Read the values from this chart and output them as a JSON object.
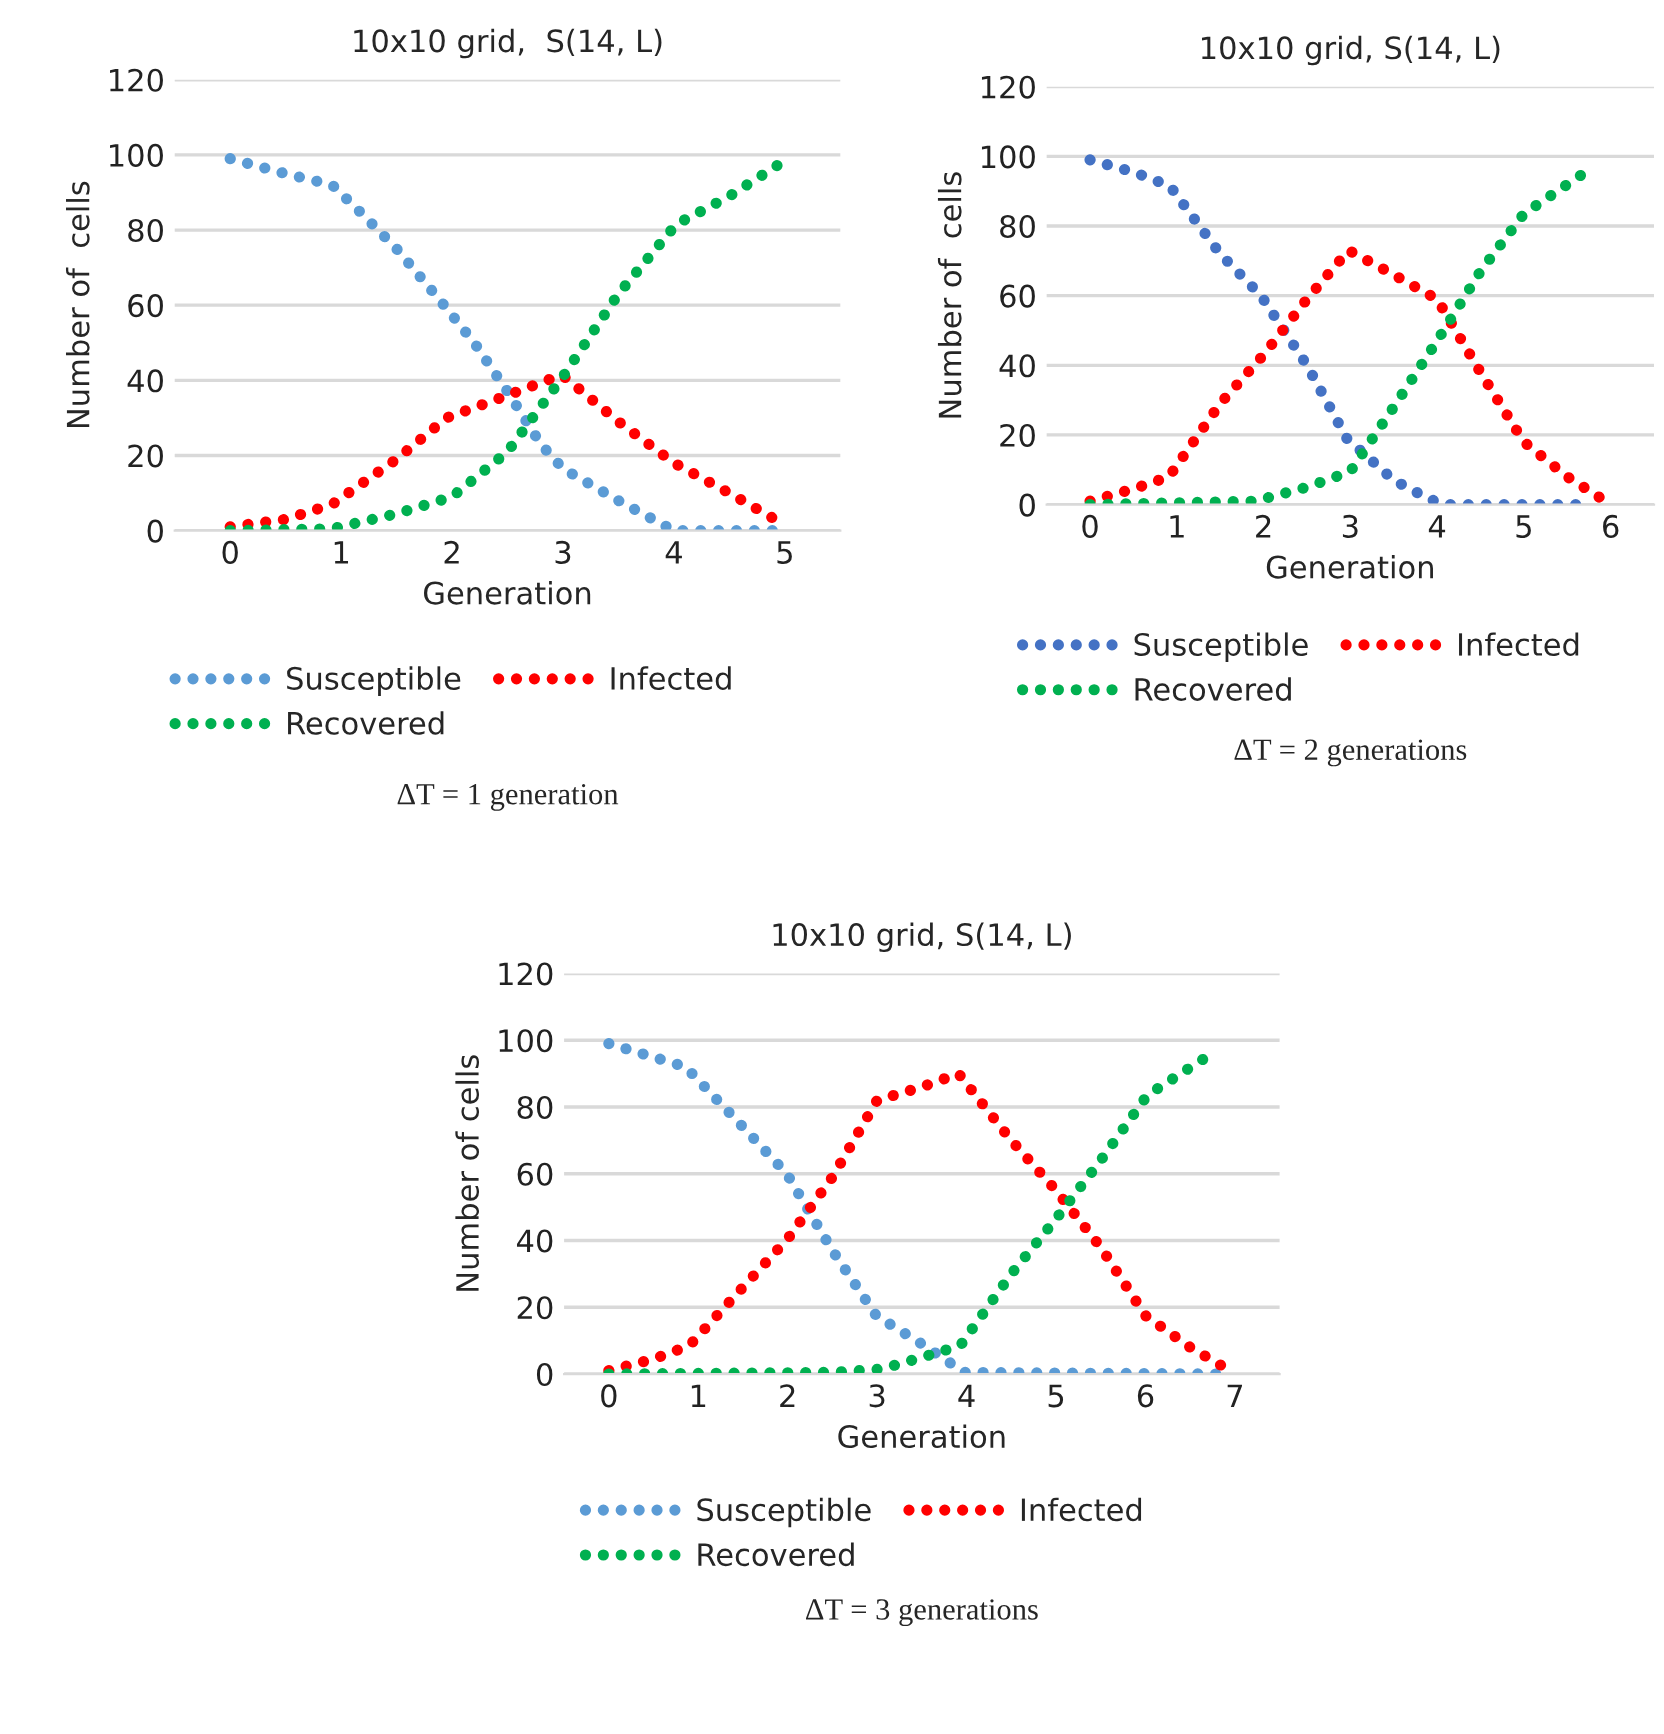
{
  "chart_data": [
    {
      "type": "line",
      "title": "10x10 grid,  S(14, L)",
      "xlabel": "Generation",
      "ylabel": "Number of  cells",
      "xlim": [
        -0.5,
        5.5
      ],
      "xticks": [
        0,
        1,
        2,
        3,
        4,
        5
      ],
      "ylim": [
        0,
        120
      ],
      "yticks": [
        0,
        20,
        40,
        60,
        80,
        100,
        120
      ],
      "grid": "y",
      "legend": "bottom",
      "line_style": "dotted",
      "marker": "none",
      "annotations": [
        "ΔT = 1 generation"
      ],
      "series": [
        {
          "name": "Susceptible",
          "color": "#5b9bd5",
          "x": [
            0,
            0.5,
            0.92,
            1.2,
            1.5,
            1.9,
            2.2,
            2.5,
            2.8,
            3.0,
            3.5,
            4.0,
            5
          ],
          "values": [
            99,
            95,
            92,
            84,
            75,
            61,
            50,
            37,
            23,
            16.5,
            8,
            0,
            0
          ]
        },
        {
          "name": "Infected",
          "color": "#ff0000",
          "x": [
            0,
            0.5,
            0.92,
            1.5,
            1.95,
            2.5,
            2.99,
            3.5,
            4.0,
            4.5,
            5
          ],
          "values": [
            1,
            3,
            7,
            19,
            30,
            36,
            41.5,
            29,
            18,
            10,
            1.5
          ]
        },
        {
          "name": "Recovered",
          "color": "#00b050",
          "x": [
            0,
            0.92,
            1.5,
            2.0,
            2.5,
            3.0,
            3.5,
            4.02,
            4.5,
            5
          ],
          "values": [
            0,
            0.5,
            4.5,
            9,
            21,
            41,
            63,
            81.5,
            89,
            98.5
          ]
        }
      ]
    },
    {
      "type": "line",
      "title": "10x10 grid, S(14, L)",
      "xlabel": "Generation",
      "ylabel": "Number of  cells",
      "xlim": [
        -0.5,
        6.5
      ],
      "xticks": [
        0,
        1,
        2,
        3,
        4,
        5,
        6
      ],
      "ylim": [
        0,
        120
      ],
      "yticks": [
        0,
        20,
        40,
        60,
        80,
        100,
        120
      ],
      "grid": "y",
      "legend": "bottom",
      "line_style": "dotted",
      "marker": "none",
      "annotations": [
        "ΔT = 2 generations"
      ],
      "series": [
        {
          "name": "Susceptible",
          "color": "#4472c4",
          "x": [
            0,
            0.5,
            0.92,
            1.5,
            1.97,
            2.5,
            2.96,
            3.5,
            3.92,
            4.1,
            5.8
          ],
          "values": [
            99,
            95.5,
            91.5,
            72,
            60,
            40,
            19,
            7,
            1.5,
            0,
            0
          ]
        },
        {
          "name": "Infected",
          "color": "#ff0000",
          "x": [
            0,
            0.5,
            0.91,
            1.5,
            2.0,
            2.5,
            2.98,
            3.5,
            4.0,
            4.5,
            5.0,
            5.5,
            5.94
          ],
          "values": [
            1,
            4.5,
            8,
            29,
            43,
            59,
            73,
            66,
            59,
            38,
            18,
            8,
            1
          ]
        },
        {
          "name": "Recovered",
          "color": "#00b050",
          "x": [
            0,
            1.9,
            2.5,
            3.0,
            3.5,
            4.0,
            4.5,
            5.0,
            5.8
          ],
          "values": [
            0,
            1,
            5,
            9.5,
            28,
            47,
            67,
            83.5,
            97
          ]
        }
      ]
    },
    {
      "type": "line",
      "title": "10x10 grid, S(14, L)",
      "xlabel": "Generation",
      "ylabel": "Number of cells",
      "xlim": [
        -0.5,
        7.5
      ],
      "xticks": [
        0,
        1,
        2,
        3,
        4,
        5,
        6,
        7
      ],
      "ylim": [
        0,
        120
      ],
      "yticks": [
        0,
        20,
        40,
        60,
        80,
        100,
        120
      ],
      "grid": "y",
      "legend": "bottom",
      "line_style": "dotted",
      "marker": "none",
      "annotations": [
        "ΔT = 3 generations"
      ],
      "series": [
        {
          "name": "Susceptible",
          "color": "#5b9bd5",
          "x": [
            0,
            0.86,
            1.5,
            1.99,
            2.5,
            2.99,
            3.5,
            3.78,
            3.97,
            6.8
          ],
          "values": [
            99,
            92,
            74,
            60,
            37,
            17.5,
            9,
            4,
            0.5,
            0
          ]
        },
        {
          "name": "Infected",
          "color": "#ff0000",
          "x": [
            0,
            0.5,
            0.9,
            1.5,
            2.0,
            2.5,
            3.0,
            3.5,
            3.91,
            4.5,
            5.0,
            5.5,
            6.0,
            6.5,
            6.98
          ],
          "values": [
            1,
            4.5,
            8.5,
            26,
            40.5,
            59,
            82,
            86,
            90,
            70,
            55,
            38,
            17.5,
            8,
            0.5
          ]
        },
        {
          "name": "Recovered",
          "color": "#00b050",
          "x": [
            0,
            2.5,
            3.05,
            3.5,
            3.93,
            4.5,
            5.0,
            5.5,
            6.02,
            6.8
          ],
          "values": [
            0,
            0.5,
            1.5,
            5,
            8.5,
            30,
            46.5,
            64,
            83.5,
            97
          ]
        }
      ]
    }
  ]
}
